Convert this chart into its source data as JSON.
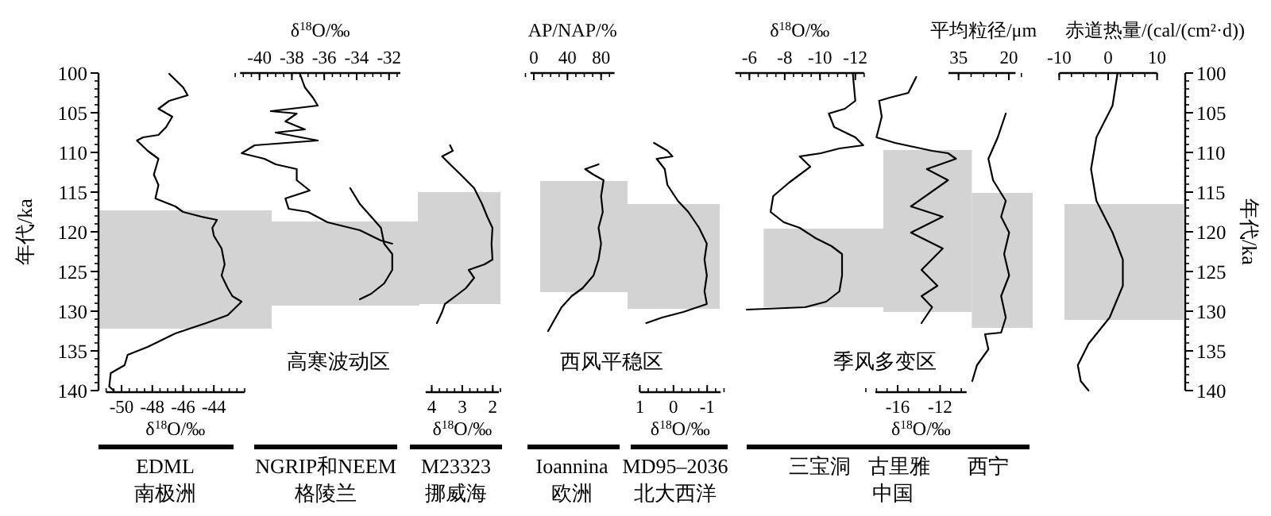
{
  "chart_data": [
    {
      "type": "line",
      "xlabel": "δ$^{18}$O/‰",
      "ylabel": "年代/ka",
      "xlim": [
        -51,
        -42
      ],
      "xticks": [
        -50,
        -48,
        -46,
        -44
      ],
      "ylim": [
        140,
        100
      ],
      "yticks": [
        100,
        105,
        110,
        115,
        120,
        125,
        130,
        135,
        140
      ],
      "bands": [
        {
          "axis": "y",
          "from": 117.3,
          "to": 132.2,
          "color": "#d3d3d3"
        }
      ],
      "series": [
        {
          "color": "#000000",
          "x": [
            -46.9,
            -46.0,
            -45.7,
            -46.9,
            -47.6,
            -46.7,
            -47.1,
            -47.6,
            -48.6,
            -49.0,
            -48.3,
            -47.6,
            -47.9,
            -47.6,
            -47.8,
            -46.5,
            -46.0,
            -44.8,
            -43.8,
            -44.1,
            -44.0,
            -43.5,
            -43.3,
            -43.5,
            -43.1,
            -42.8,
            -42.2,
            -43.1,
            -44.5,
            -46.5,
            -48.3,
            -49.6,
            -49.8,
            -50.7,
            -50.8,
            -50.5
          ],
          "values": [
            100.1,
            101.8,
            102.8,
            103.5,
            104.5,
            105.5,
            106.8,
            107.8,
            108.1,
            108.5,
            109.8,
            110.8,
            112.8,
            114.1,
            115.8,
            116.8,
            117.5,
            118.1,
            118.5,
            119.5,
            120.5,
            122.1,
            124.1,
            125.5,
            127.1,
            128.1,
            128.8,
            130.5,
            131.5,
            132.8,
            134.5,
            135.5,
            136.8,
            137.8,
            139.5,
            140
          ]
        }
      ],
      "annotations": [
        "EDML",
        "南极洲"
      ]
    },
    {
      "type": "line",
      "xlabel": "δ$^{18}$O/‰",
      "xlim": [
        -41.2,
        -31.3
      ],
      "xticks": [
        -40,
        -38,
        -36,
        -34,
        -32
      ],
      "ylim": [
        140,
        100
      ],
      "tick_labels": "x",
      "bands": [
        {
          "axis": "y",
          "from": 118.7,
          "to": 129.3,
          "color": "#d3d3d3"
        }
      ],
      "series": [
        {
          "color": "#000000",
          "x": [
            -37.5,
            -37.2,
            -36.7,
            -36.4,
            -39.3,
            -37.7,
            -38.4,
            -37.2,
            -39.0,
            -36.4,
            -40.3,
            -41.1,
            -39.7,
            -39.0,
            -37.7,
            -37.7,
            -36.9,
            -38.4,
            -38.2,
            -37.0,
            -35.8,
            -33.8,
            -32.5,
            -31.8
          ],
          "values": [
            100.1,
            101.8,
            103.1,
            104.1,
            104.8,
            105.1,
            106.1,
            107.1,
            107.5,
            108.5,
            109.1,
            110.1,
            110.8,
            111.5,
            112.1,
            113.5,
            114.8,
            115.8,
            117.1,
            117.5,
            118.8,
            119.8,
            121.1,
            121.5
          ]
        },
        {
          "color": "#000000",
          "x": [
            -34.4,
            -33.8,
            -33.1,
            -32.5,
            -32.3,
            -31.8,
            -31.8,
            -32.3,
            -33.1,
            -33.8
          ],
          "values": [
            114.5,
            116.5,
            118.1,
            119.5,
            121.5,
            122.8,
            124.8,
            126.5,
            127.8,
            128.5
          ]
        }
      ],
      "annotations": [
        "NGRIP和NEEM",
        "格陵兰",
        "高寒波动区"
      ]
    },
    {
      "type": "line",
      "xlabel": "δ$^{18}$O/‰",
      "xlim": [
        4.2,
        1.8
      ],
      "xticks": [
        4,
        3,
        2
      ],
      "ylim": [
        140,
        100
      ],
      "tick_labels": "x",
      "bands": [
        {
          "axis": "y",
          "from": 115.0,
          "to": 129.1,
          "color": "#d3d3d3"
        }
      ],
      "series": [
        {
          "color": "#000000",
          "x": [
            3.4,
            3.31,
            3.66,
            3.4,
            3.05,
            2.61,
            2.35,
            2.18,
            2.01,
            2.04,
            2.01,
            2.27,
            2.79,
            2.61,
            2.88,
            3.22,
            3.57,
            3.66,
            3.83
          ],
          "values": [
            109.1,
            109.8,
            110.5,
            111.5,
            112.8,
            114.5,
            116.5,
            118.1,
            119.5,
            121.5,
            123.5,
            124.1,
            124.8,
            125.8,
            127.1,
            128.1,
            129.1,
            130.1,
            131.5
          ]
        }
      ],
      "annotations": [
        "M23323",
        "挪威海"
      ]
    },
    {
      "type": "line",
      "xlabel": "AP/NAP/%",
      "xlim": [
        -4,
        96
      ],
      "xticks": [
        0,
        40,
        80
      ],
      "ylim": [
        140,
        100
      ],
      "tick_labels": "x",
      "bands": [
        {
          "axis": "y",
          "from": 113.6,
          "to": 127.6,
          "color": "#d3d3d3"
        }
      ],
      "series": [
        {
          "color": "#000000",
          "x": [
            77,
            61,
            71,
            83,
            80,
            82,
            77,
            80,
            77,
            71,
            58,
            45,
            33,
            26,
            17
          ],
          "values": [
            111.5,
            112.1,
            112.8,
            113.5,
            115.5,
            117.5,
            119.5,
            121.5,
            123.5,
            125.5,
            127.1,
            128.1,
            129.5,
            130.8,
            132.5
          ]
        }
      ],
      "annotations": [
        "Ioannina",
        "欧洲",
        "西风平稳区"
      ]
    },
    {
      "type": "line",
      "xlabel": "δ$^{18}$O/‰",
      "xlim": [
        1,
        -1.4
      ],
      "xticks": [
        1,
        0,
        -1
      ],
      "ylim": [
        140,
        100
      ],
      "tick_labels": "x",
      "bands": [
        {
          "axis": "y",
          "from": 116.5,
          "to": 129.7,
          "color": "#d3d3d3"
        }
      ],
      "series": [
        {
          "color": "#000000",
          "x": [
            0.58,
            0.18,
            0.03,
            0.5,
            0.26,
            0.18,
            -0.13,
            -0.44,
            -0.76,
            -0.99,
            -0.92,
            -0.99,
            -0.92,
            -0.99,
            -0.29,
            0.34,
            0.81
          ],
          "values": [
            108.8,
            109.8,
            110.5,
            110.8,
            112.1,
            114.1,
            116.1,
            117.5,
            119.5,
            121.5,
            123.5,
            125.5,
            127.5,
            129.1,
            130.1,
            130.8,
            131.5
          ]
        }
      ],
      "annotations": [
        "MD95–2036",
        "北大西洋"
      ]
    },
    {
      "type": "line",
      "xlabel": "δ$^{18}$O/‰",
      "xlim": [
        -5.2,
        -12.5
      ],
      "xticks": [
        -6,
        -8,
        -10,
        -12
      ],
      "ylim": [
        140,
        100
      ],
      "tick_labels": "x",
      "bands": [
        {
          "axis": "y",
          "from": 119.6,
          "to": 129.5,
          "color": "#d3d3d3"
        }
      ],
      "series": [
        {
          "color": "#000000",
          "x": [
            -11.86,
            -12.0,
            -11.41,
            -10.5,
            -10.8,
            -12.0,
            -12.45,
            -11.1,
            -10.05,
            -8.85,
            -9.45,
            -8.25,
            -7.35,
            -7.2,
            -7.95,
            -8.85,
            -9.75,
            -10.65,
            -11.25,
            -11.25,
            -11.1,
            -10.35,
            -9.15,
            -5.85
          ],
          "values": [
            100.1,
            103.5,
            104.5,
            105.1,
            106.8,
            108.1,
            109.1,
            109.5,
            110.1,
            110.5,
            111.8,
            113.8,
            115.5,
            117.5,
            118.8,
            119.5,
            120.8,
            121.8,
            122.8,
            125.5,
            127.5,
            128.8,
            129.5,
            129.8
          ]
        }
      ],
      "annotations": [
        "三宝洞",
        "季风多变区"
      ]
    },
    {
      "type": "line",
      "xlabel": "δ$^{18}$O/‰",
      "xlim": [
        -18.1,
        -9.5
      ],
      "xticks": [
        -16,
        -12
      ],
      "ylim": [
        140,
        100
      ],
      "tick_labels": "x",
      "bands": [
        {
          "axis": "y",
          "from": 109.7,
          "to": 130.1,
          "color": "#d3d3d3"
        }
      ],
      "series": [
        {
          "color": "#000000",
          "x": [
            -14.25,
            -15.0,
            -16.75,
            -17.75,
            -17.5,
            -18.0,
            -16.25,
            -12.75,
            -11.25,
            -10.5,
            -13.25,
            -11.25,
            -14.75,
            -11.75,
            -14.75,
            -11.75,
            -13.75,
            -12.25,
            -13.75,
            -12.75,
            -13.75
          ],
          "values": [
            100.5,
            102.5,
            103.1,
            103.5,
            105.5,
            108.1,
            108.8,
            109.8,
            110.1,
            110.8,
            112.1,
            113.5,
            116.8,
            118.1,
            120.1,
            122.1,
            124.8,
            126.8,
            128.1,
            129.5,
            131.5
          ]
        }
      ],
      "annotations": [
        "古里雅",
        "中国"
      ]
    },
    {
      "type": "line",
      "xlabel": "平均粒径/μm",
      "xlim": [
        38,
        18
      ],
      "xticks": [
        35,
        20
      ],
      "ylim": [
        140,
        100
      ],
      "tick_labels": "x",
      "bands": [
        {
          "axis": "y",
          "from": 115.1,
          "to": 132.1,
          "color": "#d3d3d3"
        }
      ],
      "series": [
        {
          "color": "#000000",
          "x": [
            20.9,
            23.3,
            26.1,
            24.7,
            20.9,
            22.3,
            19.9,
            21.4,
            19.9,
            22.3,
            20.9,
            22.3,
            27.1,
            26.1,
            29.5,
            30.9
          ],
          "values": [
            105.1,
            108.1,
            110.8,
            113.5,
            116.1,
            118.1,
            120.1,
            122.8,
            125.5,
            128.1,
            130.8,
            132.7,
            132.9,
            134.8,
            136.8,
            138.8
          ]
        }
      ],
      "annotations": [
        "西宁"
      ]
    },
    {
      "type": "line",
      "xlabel": "赤道热量/(cal/(cm²·d))",
      "xlim": [
        -10,
        10
      ],
      "xticks": [
        -10,
        0,
        10
      ],
      "ylabel": "年代/ka",
      "ylim": [
        140,
        100
      ],
      "yticks": [
        100,
        105,
        110,
        115,
        120,
        125,
        130,
        135,
        140
      ],
      "bands": [
        {
          "axis": "y",
          "from": 116.5,
          "to": 131.1,
          "color": "#d3d3d3"
        }
      ],
      "series": [
        {
          "color": "#000000",
          "x": [
            1.9,
            0.9,
            -2.4,
            -3.5,
            -2.4,
            0.9,
            3.0,
            3.0,
            0.3,
            -4.0,
            -6.2,
            -5.6,
            -4.0
          ],
          "values": [
            100.1,
            104.1,
            108.1,
            112.1,
            116.1,
            120.1,
            123.5,
            126.8,
            130.8,
            134.1,
            136.8,
            138.8,
            140
          ]
        }
      ]
    }
  ]
}
